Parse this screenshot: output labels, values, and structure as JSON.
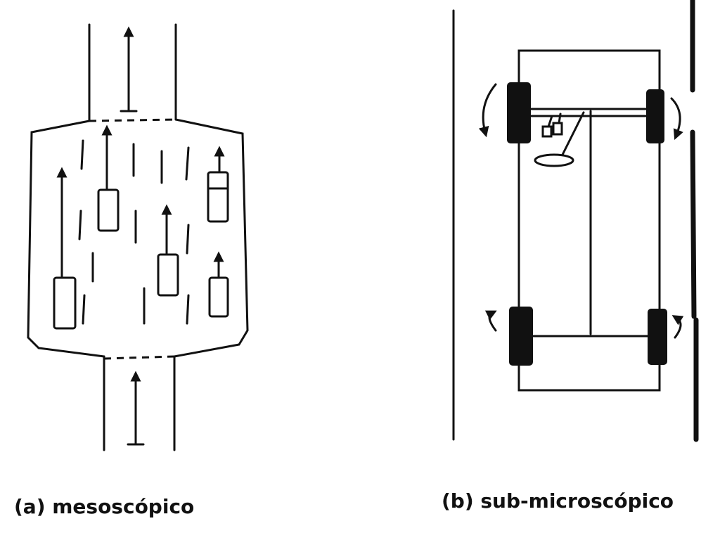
{
  "panels": [
    {
      "label": "(a) mesoscópico"
    },
    {
      "label": "(b) sub-microscópico"
    }
  ]
}
